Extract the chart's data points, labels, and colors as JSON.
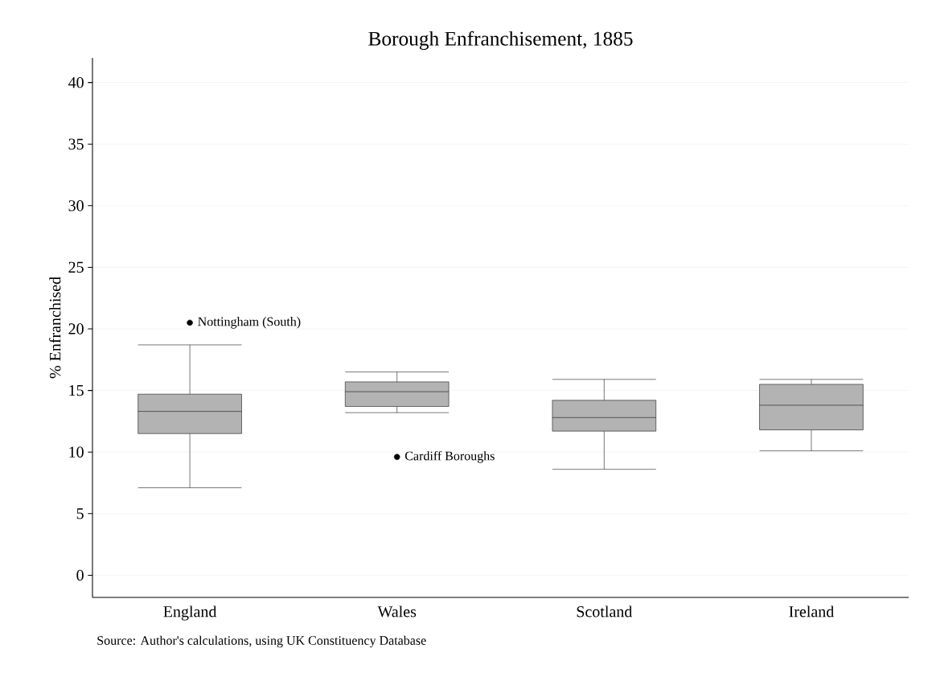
{
  "chart_data": {
    "type": "box",
    "title": "Borough Enfranchisement, 1885",
    "ylabel": "% Enfranchised",
    "categories": [
      "England",
      "Wales",
      "Scotland",
      "Ireland"
    ],
    "boxes": [
      {
        "low": 7.1,
        "q1": 11.5,
        "median": 13.3,
        "q3": 14.7,
        "high": 18.7
      },
      {
        "low": 13.2,
        "q1": 13.7,
        "median": 14.9,
        "q3": 15.7,
        "high": 16.5
      },
      {
        "low": 8.6,
        "q1": 11.7,
        "median": 12.8,
        "q3": 14.2,
        "high": 15.9
      },
      {
        "low": 10.1,
        "q1": 11.8,
        "median": 13.8,
        "q3": 15.5,
        "high": 15.9
      }
    ],
    "color": "#b3b3b3",
    "series": [
      {
        "type": "scatter",
        "x": [
          "England",
          "Wales"
        ],
        "values": [
          20.5,
          9.6
        ],
        "color": "#000000",
        "marker": "circle"
      }
    ],
    "ylim": [
      -1.8,
      42
    ],
    "yticks": [
      0,
      5,
      10,
      15,
      20,
      25,
      30,
      35,
      40
    ],
    "grid": "y",
    "annotations": [
      {
        "text": "Nottingham (South)",
        "x": "England",
        "y": 20.5
      },
      {
        "text": "Cardiff Boroughs",
        "x": "Wales",
        "y": 9.6
      },
      "Source: Author's calculations, using UK Constituency Database"
    ]
  }
}
